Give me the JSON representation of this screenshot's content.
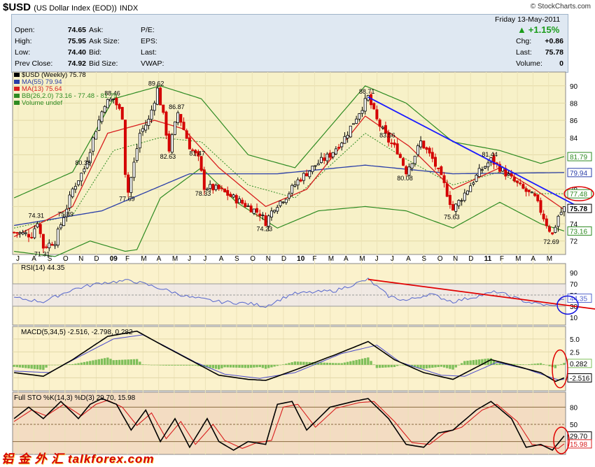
{
  "header": {
    "symbol": "$USD",
    "subtitle": "(US Dollar Index (EOD))",
    "exchange": "INDX",
    "brand": "© StockCharts.com"
  },
  "quote": {
    "date": "Friday  13-May-2011",
    "change_pct": "+1.15%",
    "rows": [
      {
        "label": "Open:",
        "value": "74.65",
        "l2": "Ask:",
        "v2": "",
        "l3": "P/E:",
        "v3": "",
        "l4": "Chg:",
        "v4": "+0.86"
      },
      {
        "label": "High:",
        "value": "75.95",
        "l2": "Ask Size:",
        "v2": "",
        "l3": "EPS:",
        "v3": "",
        "l4": "Last:",
        "v4": "75.78"
      },
      {
        "label": "Low:",
        "value": "74.40",
        "l2": "Bid:",
        "v2": "",
        "l3": "Last:",
        "v3": "",
        "l4": "Volume:",
        "v4": "0"
      },
      {
        "label": "Prev Close:",
        "value": "74.92",
        "l2": "Bid Size:",
        "v2": "",
        "l3": "VWAP:",
        "v3": "",
        "l4": "",
        "v4": ""
      }
    ]
  },
  "colors": {
    "price_bg": "#f7f1c8",
    "panel_bg": "#fbf2cc",
    "sto_bg": "#f3dcc2",
    "up": "#000000",
    "down": "#d40000",
    "ma55": "#2a3ea8",
    "ma13": "#d81e1e",
    "bb": "#2e8b22",
    "trend": "#1a1aff",
    "rsi": "#5566cc",
    "sto_k": "#000000",
    "sto_d": "#d81e1e",
    "hist": "#7fbf5a"
  },
  "chart_data": [
    {
      "type": "candlestick",
      "title": "$USD (Weekly) 75.78",
      "legend": [
        "$USD (Weekly) 75.78",
        "MA(55) 79.94",
        "MA(13) 75.64",
        "BB(26,2.0) 73.16 - 77.48 - 81.79",
        "Volume undef"
      ],
      "ylim": [
        70.6,
        91.2
      ],
      "y_ticks": [
        72,
        74,
        76,
        78,
        80,
        82,
        84,
        86,
        88,
        90
      ],
      "x_labels": [
        "J",
        "A",
        "S",
        "O",
        "N",
        "D",
        "09",
        "F",
        "M",
        "A",
        "M",
        "J",
        "J",
        "A",
        "S",
        "O",
        "N",
        "D",
        "10",
        "F",
        "M",
        "A",
        "M",
        "J",
        "J",
        "A",
        "S",
        "O",
        "N",
        "D",
        "11",
        "F",
        "M",
        "A",
        "M"
      ],
      "price_anchors": [
        [
          0,
          73.0
        ],
        [
          6,
          72.7
        ],
        [
          8,
          74.3
        ],
        [
          10,
          71.3
        ],
        [
          14,
          72.0
        ],
        [
          18,
          75.9
        ],
        [
          20,
          78.0
        ],
        [
          24,
          80.4
        ],
        [
          28,
          85.0
        ],
        [
          31,
          88.0
        ],
        [
          34,
          88.5
        ],
        [
          37,
          86.5
        ],
        [
          38,
          80.0
        ],
        [
          39,
          77.7
        ],
        [
          41,
          81.0
        ],
        [
          43,
          84.5
        ],
        [
          46,
          86.0
        ],
        [
          49,
          89.6
        ],
        [
          51,
          86.5
        ],
        [
          53,
          82.6
        ],
        [
          56,
          86.9
        ],
        [
          60,
          83.0
        ],
        [
          63,
          81.5
        ],
        [
          65,
          78.3
        ],
        [
          70,
          78.0
        ],
        [
          75,
          77.0
        ],
        [
          80,
          76.0
        ],
        [
          84,
          75.2
        ],
        [
          86,
          74.2
        ],
        [
          89,
          76.0
        ],
        [
          93,
          77.2
        ],
        [
          97,
          79.0
        ],
        [
          103,
          80.8
        ],
        [
          108,
          82.0
        ],
        [
          113,
          84.0
        ],
        [
          118,
          87.0
        ],
        [
          121,
          88.7
        ],
        [
          124,
          86.0
        ],
        [
          128,
          83.6
        ],
        [
          131,
          82.5
        ],
        [
          134,
          80.1
        ],
        [
          137,
          82.0
        ],
        [
          139,
          83.5
        ],
        [
          143,
          81.5
        ],
        [
          147,
          78.5
        ],
        [
          150,
          75.6
        ],
        [
          155,
          78.0
        ],
        [
          159,
          80.0
        ],
        [
          163,
          81.4
        ],
        [
          166,
          80.5
        ],
        [
          170,
          79.2
        ],
        [
          174,
          78.0
        ],
        [
          178,
          77.0
        ],
        [
          182,
          74.0
        ],
        [
          184,
          72.7
        ],
        [
          186,
          74.9
        ],
        [
          188,
          75.8
        ]
      ],
      "ma55_anchors": [
        [
          0,
          73.8
        ],
        [
          30,
          75.5
        ],
        [
          60,
          79.8
        ],
        [
          90,
          79.8
        ],
        [
          120,
          80.8
        ],
        [
          150,
          79.8
        ],
        [
          188,
          79.94
        ]
      ],
      "ma13_anchors": [
        [
          0,
          72.5
        ],
        [
          20,
          76.0
        ],
        [
          32,
          84.5
        ],
        [
          48,
          86.0
        ],
        [
          58,
          85.0
        ],
        [
          70,
          80.5
        ],
        [
          86,
          76.0
        ],
        [
          100,
          78.0
        ],
        [
          120,
          86.5
        ],
        [
          135,
          83.0
        ],
        [
          150,
          78.0
        ],
        [
          166,
          80.5
        ],
        [
          178,
          78.0
        ],
        [
          188,
          75.64
        ]
      ],
      "bb_upper_anchors": [
        [
          0,
          77.0
        ],
        [
          20,
          80.0
        ],
        [
          34,
          88.5
        ],
        [
          50,
          90.0
        ],
        [
          64,
          88.5
        ],
        [
          80,
          82.0
        ],
        [
          96,
          80.5
        ],
        [
          120,
          90.0
        ],
        [
          134,
          88.0
        ],
        [
          150,
          83.5
        ],
        [
          166,
          82.5
        ],
        [
          180,
          81.0
        ],
        [
          188,
          81.79
        ]
      ],
      "bb_lower_anchors": [
        [
          0,
          70.8
        ],
        [
          14,
          70.2
        ],
        [
          26,
          72.0
        ],
        [
          38,
          70.8
        ],
        [
          42,
          71.0
        ],
        [
          50,
          77.0
        ],
        [
          64,
          80.5
        ],
        [
          76,
          76.5
        ],
        [
          90,
          73.5
        ],
        [
          104,
          75.5
        ],
        [
          120,
          76.0
        ],
        [
          134,
          75.5
        ],
        [
          150,
          73.5
        ],
        [
          166,
          76.5
        ],
        [
          180,
          74.0
        ],
        [
          188,
          73.16
        ]
      ],
      "bb_mid_anchors": [
        [
          0,
          73.5
        ],
        [
          20,
          75.0
        ],
        [
          34,
          82.5
        ],
        [
          50,
          84.0
        ],
        [
          64,
          83.5
        ],
        [
          80,
          78.5
        ],
        [
          96,
          77.0
        ],
        [
          120,
          84.5
        ],
        [
          134,
          81.5
        ],
        [
          150,
          78.5
        ],
        [
          166,
          80.0
        ],
        [
          178,
          77.5
        ],
        [
          188,
          77.48
        ]
      ],
      "annotations": [
        {
          "text": "74.31",
          "x": 8,
          "y": 74.3
        },
        {
          "text": "71.31",
          "x": 10,
          "y": 71.3
        },
        {
          "text": "75.89",
          "x": 18,
          "y": 75.9
        },
        {
          "text": "80.38",
          "x": 24,
          "y": 80.4
        },
        {
          "text": "77.69",
          "x": 39,
          "y": 77.7
        },
        {
          "text": "88.46",
          "x": 34,
          "y": 88.5
        },
        {
          "text": "89.62",
          "x": 49,
          "y": 89.6
        },
        {
          "text": "82.63",
          "x": 53,
          "y": 82.6
        },
        {
          "text": "86.87",
          "x": 56,
          "y": 86.9
        },
        {
          "text": "81.47",
          "x": 63,
          "y": 81.5
        },
        {
          "text": "78.33",
          "x": 65,
          "y": 78.3
        },
        {
          "text": "74.23",
          "x": 86,
          "y": 74.2
        },
        {
          "text": "88.71",
          "x": 121,
          "y": 88.7
        },
        {
          "text": "83.56",
          "x": 128,
          "y": 83.6
        },
        {
          "text": "80.08",
          "x": 134,
          "y": 80.1
        },
        {
          "text": "75.63",
          "x": 150,
          "y": 75.6
        },
        {
          "text": "81.44",
          "x": 163,
          "y": 81.4
        },
        {
          "text": "72.69",
          "x": 184,
          "y": 72.7
        }
      ],
      "right_labels": [
        {
          "text": "81.79",
          "y": 81.79,
          "color": "#2e8b22"
        },
        {
          "text": "79.94",
          "y": 79.94,
          "color": "#2a3ea8"
        },
        {
          "text": "77.48",
          "y": 77.48,
          "color": "#2e8b22"
        },
        {
          "text": "75.78",
          "y": 75.78,
          "color": "#000000"
        },
        {
          "text": "73.16",
          "y": 73.16,
          "color": "#2e8b22"
        }
      ],
      "trendline": [
        [
          121,
          88.7
        ],
        [
          195,
          75.6
        ]
      ]
    },
    {
      "type": "line",
      "title": "RSI(14) 44.35",
      "ylim": [
        0,
        100
      ],
      "y_ticks": [
        10,
        30,
        50,
        70,
        90
      ],
      "levels": [
        30,
        50,
        70
      ],
      "rsi_anchors": [
        [
          0,
          45
        ],
        [
          10,
          38
        ],
        [
          20,
          60
        ],
        [
          30,
          72
        ],
        [
          40,
          76
        ],
        [
          50,
          62
        ],
        [
          60,
          46
        ],
        [
          70,
          38
        ],
        [
          80,
          35
        ],
        [
          86,
          30
        ],
        [
          95,
          52
        ],
        [
          110,
          58
        ],
        [
          121,
          78
        ],
        [
          128,
          48
        ],
        [
          134,
          40
        ],
        [
          142,
          52
        ],
        [
          150,
          38
        ],
        [
          165,
          56
        ],
        [
          175,
          38
        ],
        [
          184,
          30
        ],
        [
          188,
          44.35
        ]
      ],
      "last_label": "44.35",
      "trendline": [
        [
          121,
          78
        ],
        [
          195,
          30
        ]
      ]
    },
    {
      "type": "line",
      "title": "MACD(5,34,5) -2.516, -2.798, 0.282",
      "ylim": [
        -4.6,
        7.0
      ],
      "y_ticks": [
        -2.5,
        0.0,
        2.5,
        5.0
      ],
      "y_tick_labels": [
        "-2.5",
        "0.0",
        "2.5",
        "5.0"
      ],
      "macd_anchors": [
        [
          0,
          -1.5
        ],
        [
          10,
          -2.2
        ],
        [
          20,
          1.0
        ],
        [
          32,
          5.5
        ],
        [
          42,
          6.5
        ],
        [
          50,
          4.0
        ],
        [
          60,
          1.0
        ],
        [
          70,
          -2.0
        ],
        [
          80,
          -2.8
        ],
        [
          86,
          -3.0
        ],
        [
          96,
          -1.0
        ],
        [
          110,
          2.0
        ],
        [
          121,
          4.5
        ],
        [
          130,
          1.0
        ],
        [
          140,
          -1.5
        ],
        [
          150,
          -2.8
        ],
        [
          163,
          1.0
        ],
        [
          170,
          0.0
        ],
        [
          180,
          -1.5
        ],
        [
          185,
          -3.2
        ],
        [
          188,
          -2.516
        ]
      ],
      "signal_anchors": [
        [
          0,
          -1.2
        ],
        [
          12,
          -1.5
        ],
        [
          22,
          1.5
        ],
        [
          34,
          5.0
        ],
        [
          44,
          5.8
        ],
        [
          52,
          3.5
        ],
        [
          62,
          0.5
        ],
        [
          72,
          -1.8
        ],
        [
          84,
          -2.6
        ],
        [
          96,
          -1.5
        ],
        [
          112,
          2.2
        ],
        [
          124,
          3.8
        ],
        [
          132,
          0.5
        ],
        [
          146,
          -2.0
        ],
        [
          154,
          -2.2
        ],
        [
          165,
          0.5
        ],
        [
          175,
          -0.8
        ],
        [
          186,
          -2.9
        ],
        [
          188,
          -2.798
        ]
      ],
      "last_labels": [
        "0.282",
        "-2.516"
      ]
    },
    {
      "type": "line",
      "title": "Full STO %K(14,3) %D(3) 29.70, 15.98",
      "ylim": [
        0,
        100
      ],
      "y_ticks": [
        20,
        50,
        80
      ],
      "levels": [
        20,
        50,
        80
      ],
      "k_anchors": [
        [
          0,
          60
        ],
        [
          5,
          80
        ],
        [
          10,
          60
        ],
        [
          16,
          90
        ],
        [
          22,
          60
        ],
        [
          26,
          85
        ],
        [
          30,
          95
        ],
        [
          35,
          85
        ],
        [
          40,
          40
        ],
        [
          45,
          75
        ],
        [
          50,
          20
        ],
        [
          55,
          60
        ],
        [
          60,
          10
        ],
        [
          66,
          60
        ],
        [
          70,
          20
        ],
        [
          75,
          5
        ],
        [
          80,
          20
        ],
        [
          86,
          15
        ],
        [
          90,
          85
        ],
        [
          95,
          90
        ],
        [
          100,
          40
        ],
        [
          108,
          80
        ],
        [
          116,
          90
        ],
        [
          121,
          95
        ],
        [
          128,
          60
        ],
        [
          134,
          15
        ],
        [
          140,
          10
        ],
        [
          145,
          35
        ],
        [
          150,
          40
        ],
        [
          158,
          75
        ],
        [
          163,
          90
        ],
        [
          170,
          60
        ],
        [
          175,
          10
        ],
        [
          180,
          15
        ],
        [
          184,
          5
        ],
        [
          188,
          29.7
        ]
      ],
      "d_anchors": [
        [
          0,
          55
        ],
        [
          6,
          75
        ],
        [
          11,
          65
        ],
        [
          17,
          85
        ],
        [
          23,
          65
        ],
        [
          28,
          85
        ],
        [
          32,
          92
        ],
        [
          37,
          80
        ],
        [
          42,
          48
        ],
        [
          47,
          70
        ],
        [
          52,
          25
        ],
        [
          57,
          55
        ],
        [
          62,
          15
        ],
        [
          68,
          50
        ],
        [
          72,
          22
        ],
        [
          78,
          8
        ],
        [
          83,
          18
        ],
        [
          88,
          22
        ],
        [
          92,
          80
        ],
        [
          97,
          85
        ],
        [
          103,
          45
        ],
        [
          110,
          78
        ],
        [
          118,
          88
        ],
        [
          123,
          90
        ],
        [
          130,
          55
        ],
        [
          136,
          18
        ],
        [
          142,
          15
        ],
        [
          147,
          35
        ],
        [
          153,
          45
        ],
        [
          160,
          75
        ],
        [
          165,
          85
        ],
        [
          172,
          55
        ],
        [
          177,
          15
        ],
        [
          182,
          12
        ],
        [
          186,
          8
        ],
        [
          188,
          15.98
        ]
      ],
      "last_labels": [
        "29.70",
        "15.98"
      ]
    }
  ],
  "watermark": "铝 金 外 汇  talkforex.com"
}
